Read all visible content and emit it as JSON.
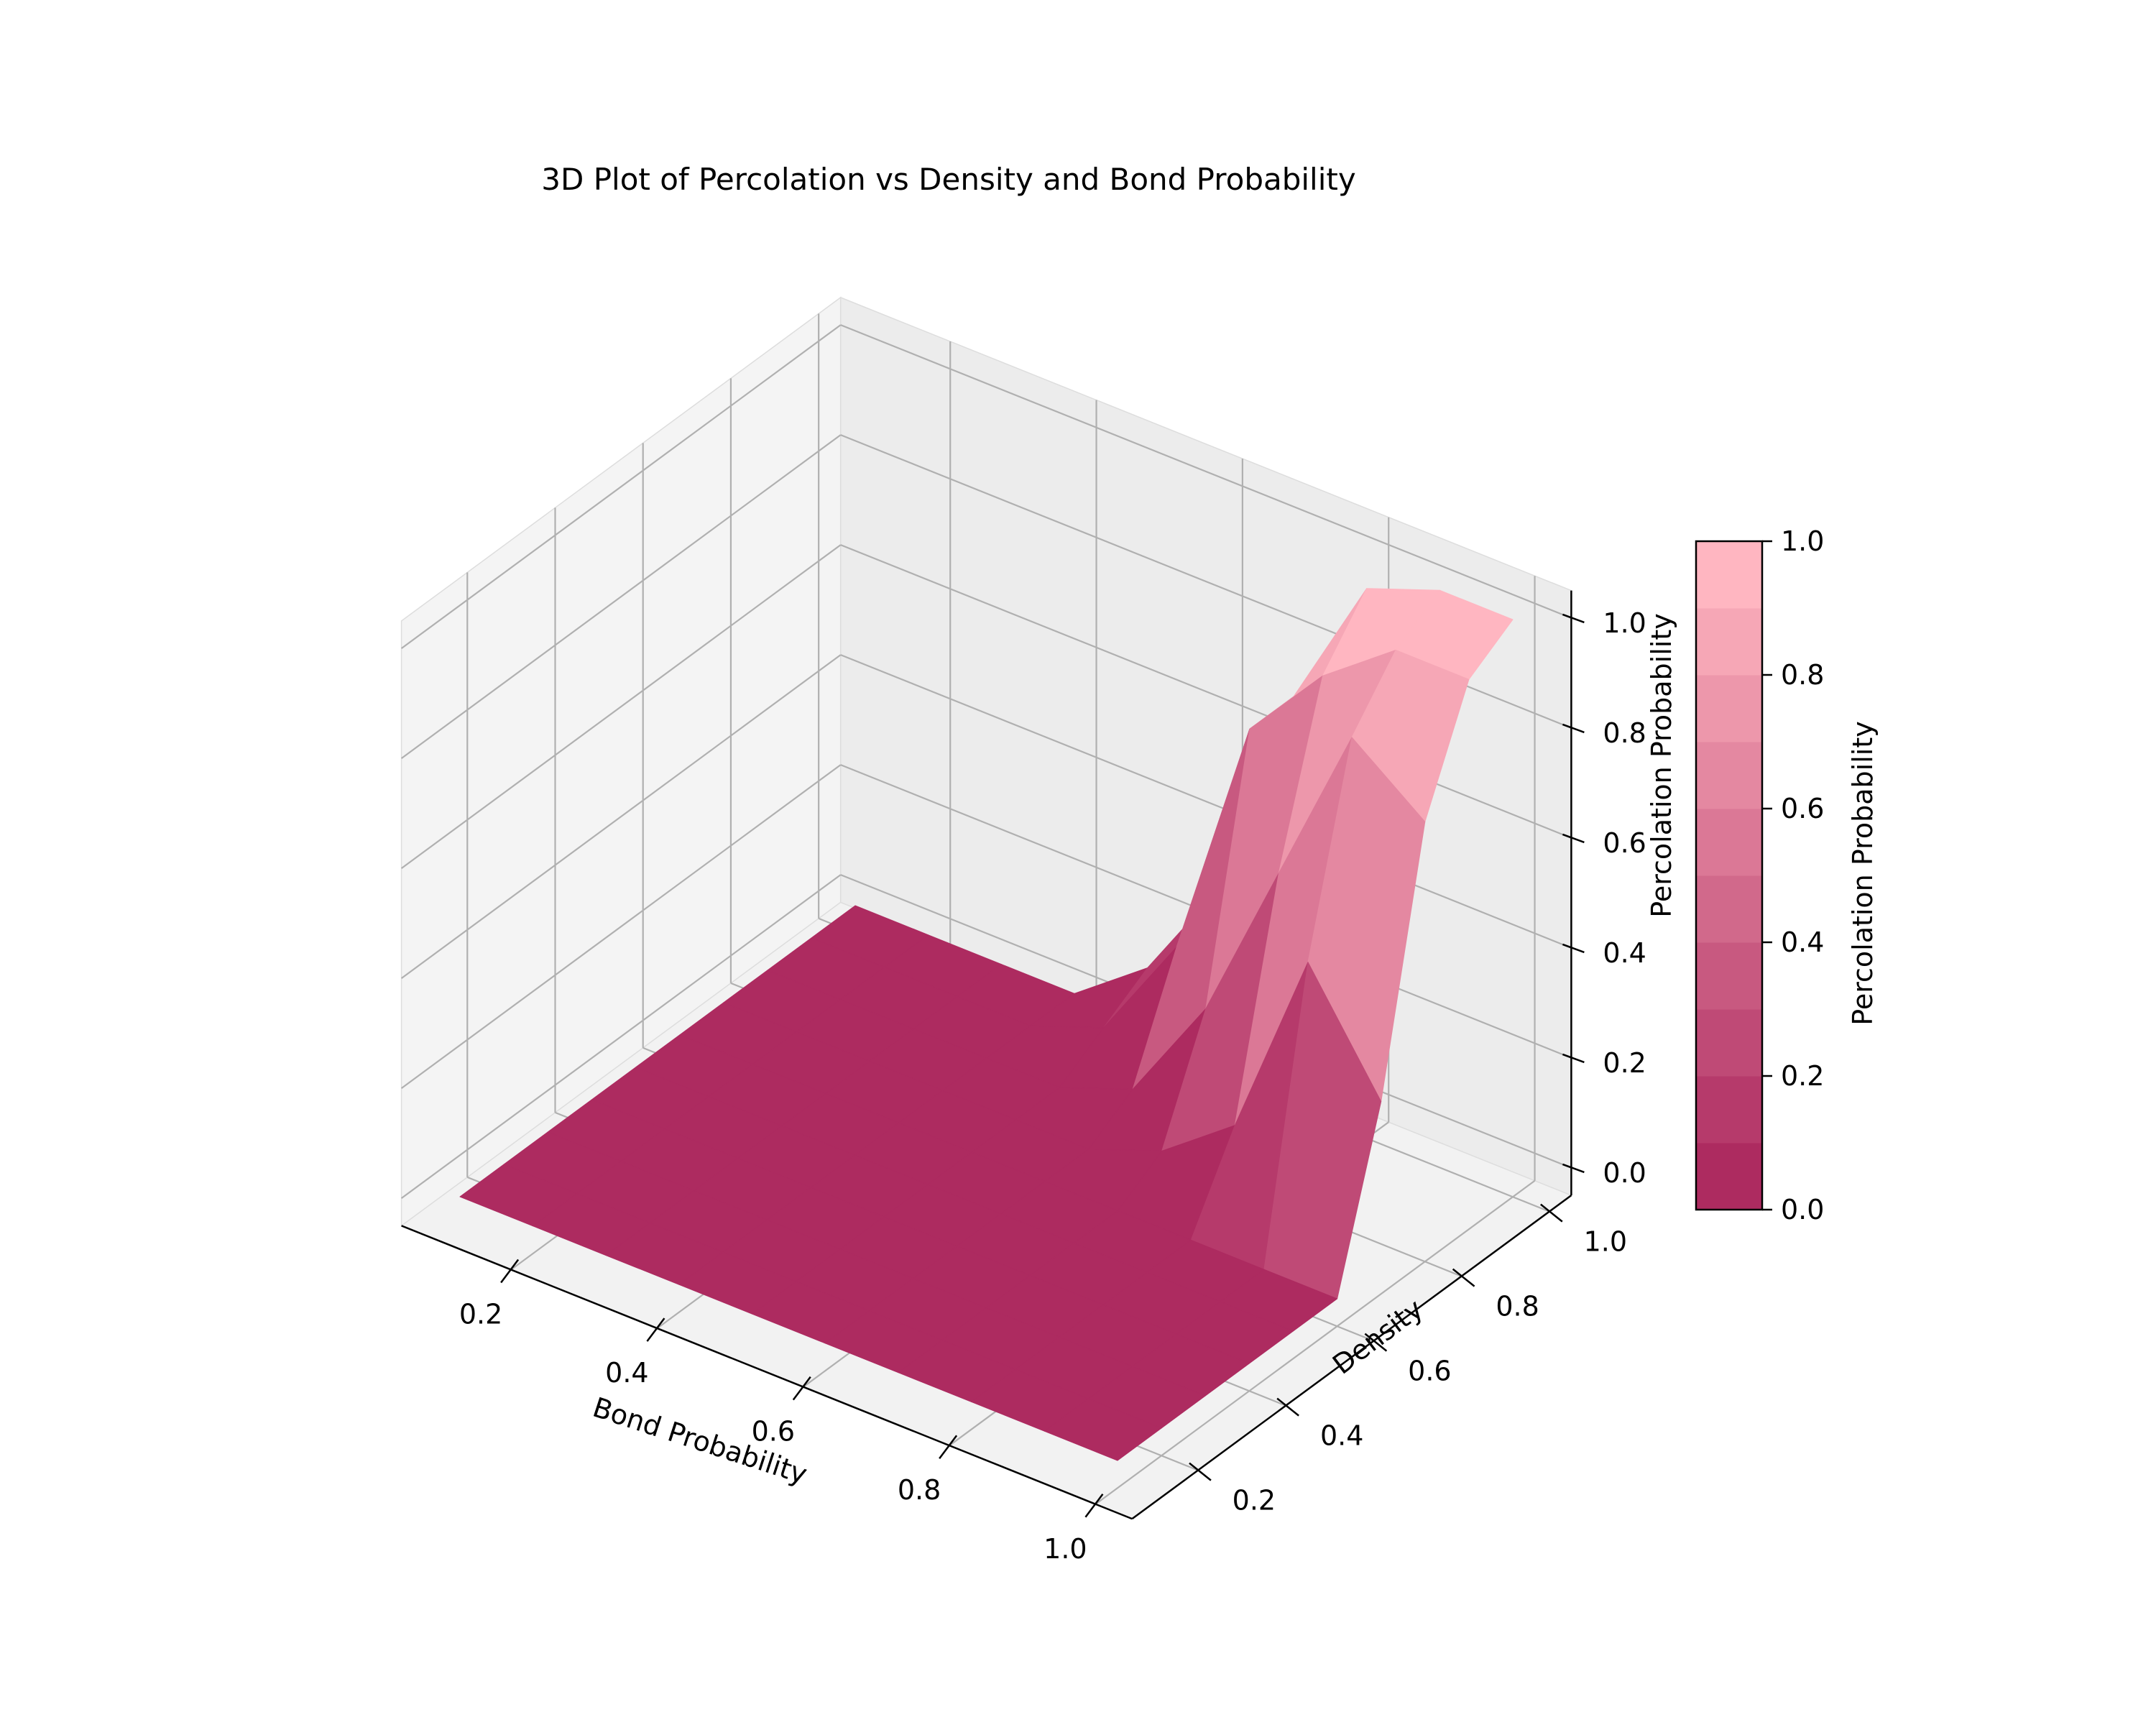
{
  "chart_data": {
    "type": "surface",
    "title": "3D Plot of Percolation vs Density and Bond Probability",
    "xlabel": "Bond Probability",
    "ylabel": "Density",
    "zlabel": "Percolation Probability",
    "x": [
      0.1,
      0.2,
      0.3,
      0.4,
      0.5,
      0.6,
      0.7,
      0.8,
      0.9,
      1.0
    ],
    "y": [
      0.1,
      0.2,
      0.3,
      0.4,
      0.5,
      0.6,
      0.7,
      0.8,
      0.9,
      1.0
    ],
    "z": [
      [
        0,
        0,
        0,
        0,
        0,
        0,
        0,
        0,
        0,
        0
      ],
      [
        0,
        0,
        0,
        0,
        0,
        0,
        0,
        0,
        0,
        0
      ],
      [
        0,
        0,
        0,
        0,
        0,
        0,
        0,
        0,
        0,
        0
      ],
      [
        0,
        0,
        0,
        0,
        0,
        0,
        0,
        0,
        0,
        0
      ],
      [
        0,
        0,
        0,
        0,
        0,
        0,
        0,
        0,
        0,
        0
      ],
      [
        0,
        0,
        0,
        0,
        0,
        0,
        0,
        0,
        0,
        0
      ],
      [
        0,
        0,
        0,
        0,
        0,
        0,
        0.05,
        0.15,
        0.5,
        0.3
      ],
      [
        0,
        0,
        0,
        0,
        0,
        0.05,
        0.25,
        0.55,
        0.85,
        0.75
      ],
      [
        0,
        0,
        0,
        0,
        0.05,
        0.25,
        0.7,
        0.85,
        0.95,
        0.95
      ],
      [
        0,
        0,
        0,
        0,
        0.1,
        0.3,
        0.7,
        0.95,
        1.0,
        1.0
      ]
    ],
    "xticks": [
      "0.2",
      "0.4",
      "0.6",
      "0.8",
      "1.0"
    ],
    "yticks": [
      "0.2",
      "0.4",
      "0.6",
      "0.8",
      "1.0"
    ],
    "zticks": [
      "0.0",
      "0.2",
      "0.4",
      "0.6",
      "0.8",
      "1.0"
    ],
    "xlim": [
      0.1,
      1.0
    ],
    "ylim": [
      0.1,
      1.0
    ],
    "zlim": [
      0,
      1
    ],
    "colormap": {
      "low": "#ad2b60",
      "high": "#ffb6c1",
      "levels": 10
    },
    "colorbar": {
      "label": "Percolation Probability",
      "ticks": [
        "0.0",
        "0.2",
        "0.4",
        "0.6",
        "0.8",
        "1.0"
      ],
      "range": [
        0,
        1
      ]
    },
    "grid": true
  }
}
